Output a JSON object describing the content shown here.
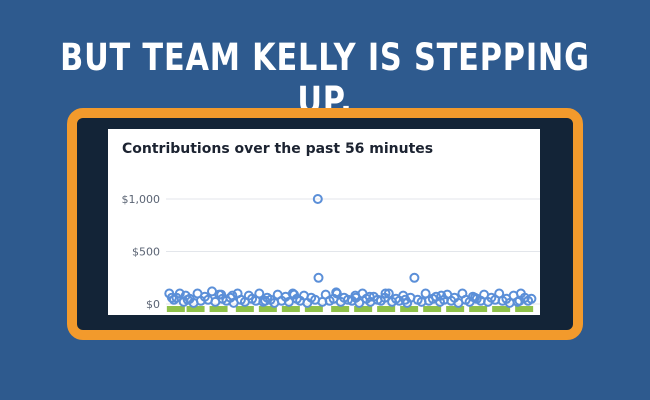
{
  "headline": "BUT TEAM KELLY IS STEPPING UP.",
  "colors": {
    "background": "#2e5a8e",
    "frame_border": "#f29a2c",
    "frame_fill": "#132437",
    "point_stroke": "#5b8fd8",
    "green_marks": "#8fc14a"
  },
  "chart_data": {
    "type": "scatter",
    "title": "Contributions over the past 56 minutes",
    "xlabel": "",
    "ylabel": "",
    "ylim": [
      0,
      1000
    ],
    "yticks": [
      "$0",
      "$500",
      "$1,000"
    ],
    "ytick_values": [
      0,
      500,
      1000
    ],
    "grid": true,
    "x_range": [
      0,
      56
    ],
    "series": [
      {
        "x": [
          0.5,
          1.2,
          1.6,
          2.1,
          2.7,
          3.0,
          3.6,
          4.2,
          4.8,
          5.3,
          5.9,
          6.4,
          7.0,
          7.5,
          8.1,
          8.6,
          9.2,
          9.8,
          10.3,
          10.9,
          11.4,
          12.0,
          12.6,
          13.1,
          13.7,
          14.2,
          14.8,
          15.4,
          15.9,
          16.5,
          17.0,
          17.6,
          18.2,
          18.7,
          19.3,
          19.9,
          20.4,
          21.0,
          21.5,
          22.1,
          22.7,
          23.2,
          23.8,
          24.3,
          24.9,
          25.5,
          26.0,
          26.6,
          27.1,
          27.7,
          28.3,
          28.8,
          29.4,
          29.9,
          30.5,
          31.1,
          31.6,
          32.2,
          32.7,
          33.3,
          33.9,
          34.4,
          35.0,
          35.5,
          36.1,
          36.7,
          37.2,
          37.8,
          38.3,
          38.9,
          39.5,
          40.0,
          40.6,
          41.1,
          41.7,
          42.3,
          42.8,
          43.4,
          43.9,
          44.5,
          45.1,
          45.6,
          46.2,
          46.7,
          47.3,
          47.9,
          48.4,
          49.0,
          49.5,
          50.1,
          50.7,
          51.2,
          51.8,
          52.3,
          52.9,
          53.5,
          54.0,
          54.6,
          55.1,
          55.6,
          23.1,
          33.4,
          8.4,
          28.9,
          0.9,
          3.3,
          10.1,
          15.1,
          19.5,
          25.9,
          31.0,
          36.4,
          41.9,
          47.0,
          53.8
        ],
        "y": [
          100,
          40,
          60,
          100,
          20,
          80,
          50,
          10,
          100,
          30,
          70,
          40,
          120,
          20,
          90,
          50,
          30,
          60,
          10,
          100,
          40,
          20,
          80,
          50,
          30,
          100,
          20,
          60,
          40,
          10,
          90,
          30,
          70,
          20,
          100,
          50,
          30,
          80,
          10,
          60,
          40,
          250,
          20,
          90,
          30,
          50,
          100,
          20,
          60,
          40,
          30,
          80,
          10,
          100,
          50,
          20,
          70,
          40,
          30,
          60,
          100,
          20,
          50,
          30,
          80,
          10,
          60,
          250,
          40,
          20,
          100,
          30,
          50,
          70,
          20,
          40,
          90,
          30,
          60,
          10,
          100,
          40,
          20,
          70,
          50,
          30,
          90,
          20,
          60,
          40,
          100,
          30,
          50,
          10,
          80,
          20,
          100,
          60,
          30,
          50,
          1000,
          100,
          90,
          60,
          60,
          40,
          80,
          30,
          90,
          110,
          70,
          40,
          80,
          60,
          30
        ]
      }
    ],
    "green_bar_x": [
      1.5,
      4.5,
      8.0,
      12.0,
      15.5,
      19.0,
      22.5,
      26.5,
      30.0,
      33.5,
      37.0,
      40.5,
      44.0,
      47.5,
      51.0,
      54.5
    ]
  }
}
